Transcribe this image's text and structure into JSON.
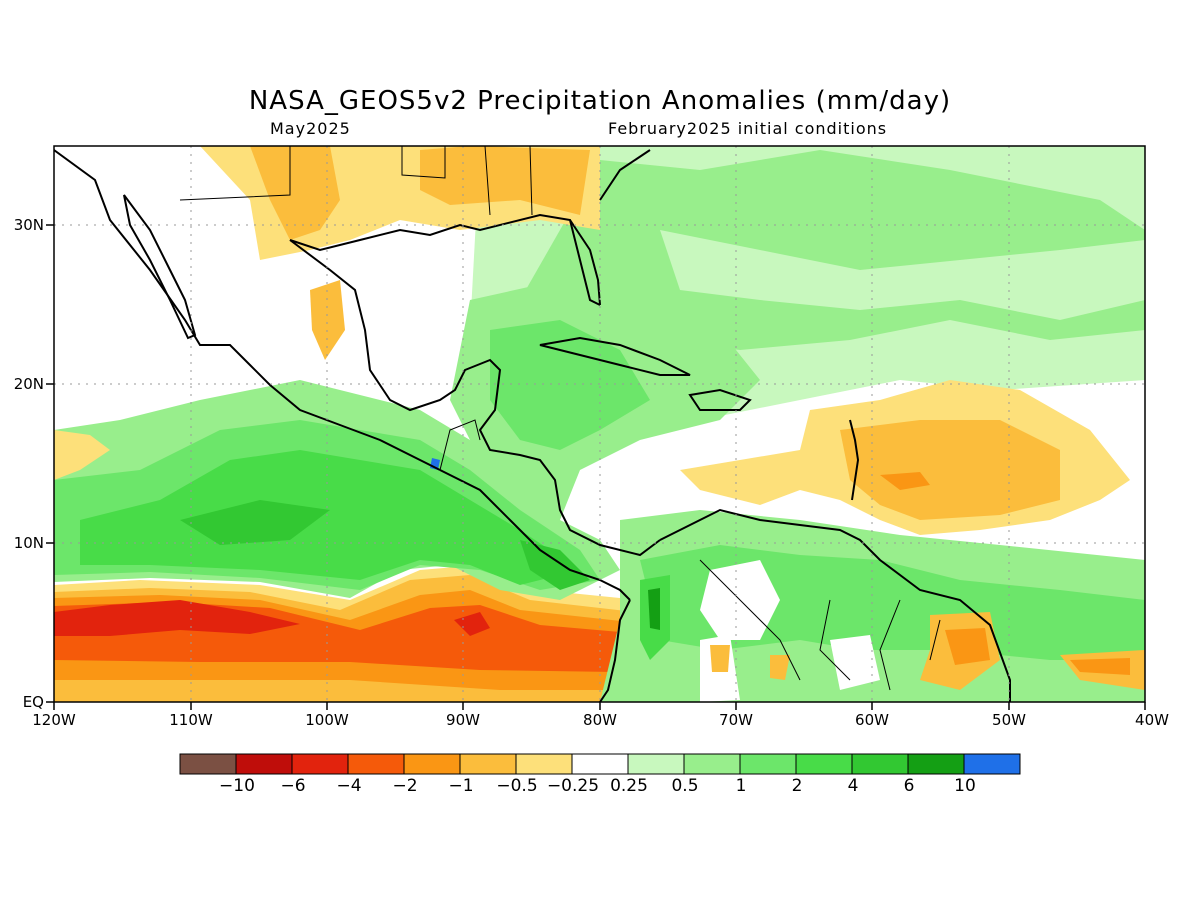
{
  "title": "NASA_GEOS5v2 Precipitation Anomalies (mm/day)",
  "subtitle_left": "May2025",
  "subtitle_right": "February2025 initial conditions",
  "lat_ticks": [
    "30N",
    "20N",
    "10N",
    "EQ"
  ],
  "lon_ticks": [
    "120W",
    "110W",
    "100W",
    "90W",
    "80W",
    "70W",
    "60W",
    "50W",
    "40W"
  ],
  "colorbar": {
    "colors": [
      "#7b5043",
      "#bf0d0a",
      "#e2230d",
      "#f55a0a",
      "#fa9614",
      "#fbbd3c",
      "#fde07a",
      "#ffffff",
      "#c8f8be",
      "#98ee8c",
      "#6ce66a",
      "#48dc48",
      "#32c832",
      "#149f14",
      "#1f70e8"
    ],
    "labels": [
      "−10",
      "−6",
      "−4",
      "−2",
      "−1",
      "−0.5",
      "−0.25",
      "0.25",
      "0.5",
      "1",
      "2",
      "4",
      "6",
      "10"
    ]
  },
  "map": {
    "extent": {
      "lon": [
        -120,
        -40
      ],
      "lat": [
        0,
        35
      ]
    },
    "gridlines": "dotted",
    "field_colors": {
      "ocean_base": "#ffffff",
      "itcz_dry_outer": "#fde07a",
      "itcz_dry_mid": "#fbbd3c",
      "itcz_dry_inner": "#fa9614",
      "itcz_dry_core": "#f55a0a",
      "itcz_dry_peak": "#e2230d",
      "wet_light": "#c8f8be",
      "wet_mid": "#98ee8c",
      "wet_strong": "#6ce66a",
      "wet_heavy": "#48dc48",
      "wet_peak": "#32c832",
      "wet_max": "#149f14",
      "blue_spot": "#1f70e8"
    }
  }
}
